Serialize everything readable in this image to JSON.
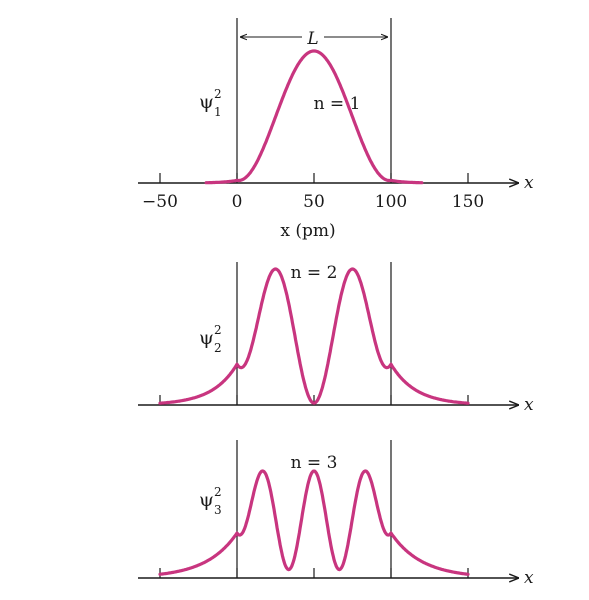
{
  "chart_data": [
    {
      "type": "line",
      "ylabel_symbol": "ψ",
      "ylabel_sup": "2",
      "ylabel_sub": "1",
      "annotation": "n = 1",
      "length_label": "L",
      "axis_var": "x",
      "xlabel": "x (pm)",
      "xticks": [
        -50,
        0,
        50,
        100,
        150
      ],
      "xtick_labels": [
        "−50",
        "0",
        "50",
        "100",
        "150"
      ],
      "walls": [
        0,
        100
      ],
      "n": 1,
      "color": "#c8357f",
      "xlim": [
        -65,
        182
      ]
    },
    {
      "type": "line",
      "ylabel_symbol": "ψ",
      "ylabel_sup": "2",
      "ylabel_sub": "2",
      "annotation": "n = 2",
      "axis_var": "x",
      "xticks": [
        -50,
        0,
        50,
        100,
        150
      ],
      "walls": [
        0,
        100
      ],
      "n": 2,
      "color": "#c8357f",
      "xlim": [
        -65,
        182
      ]
    },
    {
      "type": "line",
      "ylabel_symbol": "ψ",
      "ylabel_sup": "2",
      "ylabel_sub": "3",
      "annotation": "n = 3",
      "axis_var": "x",
      "xticks": [
        -50,
        0,
        50,
        100,
        150
      ],
      "walls": [
        0,
        100
      ],
      "n": 3,
      "color": "#c8357f",
      "xlim": [
        -65,
        182
      ]
    }
  ]
}
